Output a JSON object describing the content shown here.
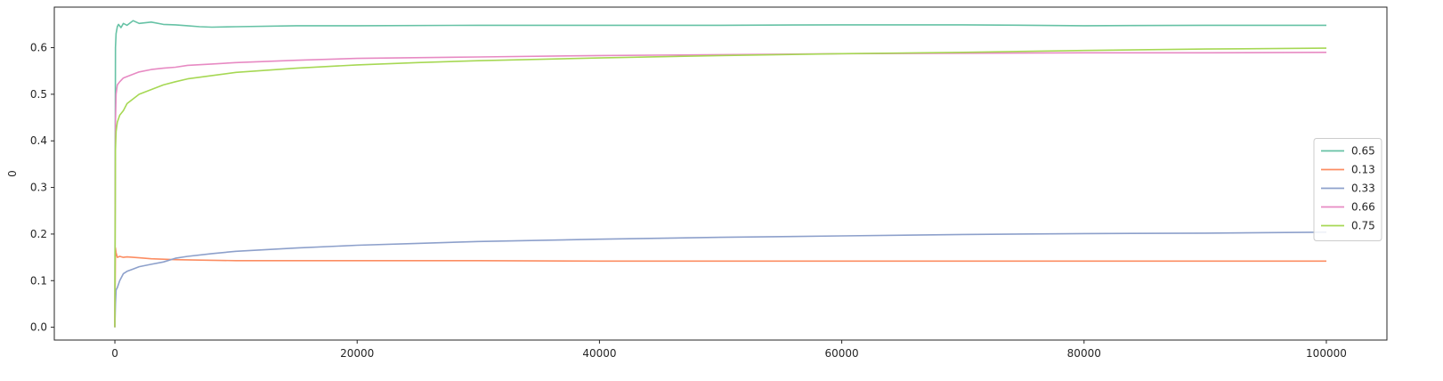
{
  "chart_data": {
    "type": "line",
    "title": "",
    "xlabel": "",
    "ylabel": "0",
    "xlim": [
      -5000,
      105000
    ],
    "ylim": [
      -0.0275,
      0.687
    ],
    "xticks": [
      0,
      20000,
      40000,
      60000,
      80000,
      100000
    ],
    "xtick_labels": [
      "0",
      "20000",
      "40000",
      "60000",
      "80000",
      "100000"
    ],
    "yticks": [
      0.0,
      0.1,
      0.2,
      0.3,
      0.4,
      0.5,
      0.6
    ],
    "ytick_labels": [
      "0.0",
      "0.1",
      "0.2",
      "0.3",
      "0.4",
      "0.5",
      "0.6"
    ],
    "grid": false,
    "legend_position": "center-right",
    "series": [
      {
        "name": "0.65",
        "color": "#66c2a5",
        "x": [
          0,
          50,
          100,
          200,
          300,
          500,
          700,
          1000,
          1500,
          2000,
          3000,
          4000,
          5000,
          6000,
          7000,
          8000,
          10000,
          15000,
          20000,
          30000,
          40000,
          50000,
          60000,
          70000,
          80000,
          90000,
          100000
        ],
        "y": [
          0.0,
          0.6,
          0.63,
          0.645,
          0.65,
          0.643,
          0.652,
          0.648,
          0.658,
          0.652,
          0.655,
          0.65,
          0.649,
          0.647,
          0.645,
          0.644,
          0.645,
          0.647,
          0.647,
          0.648,
          0.648,
          0.648,
          0.649,
          0.649,
          0.647,
          0.648,
          0.648
        ]
      },
      {
        "name": "0.13",
        "color": "#fc8d62",
        "x": [
          0,
          50,
          100,
          200,
          400,
          700,
          1000,
          2000,
          3000,
          4000,
          5000,
          7000,
          10000,
          20000,
          30000,
          40000,
          50000,
          60000,
          70000,
          80000,
          90000,
          100000
        ],
        "y": [
          0.0,
          0.17,
          0.16,
          0.15,
          0.152,
          0.15,
          0.151,
          0.149,
          0.147,
          0.146,
          0.145,
          0.144,
          0.143,
          0.143,
          0.143,
          0.142,
          0.142,
          0.142,
          0.142,
          0.142,
          0.142,
          0.142
        ]
      },
      {
        "name": "0.33",
        "color": "#8da0cb",
        "x": [
          0,
          50,
          100,
          200,
          400,
          700,
          1000,
          1500,
          2000,
          3000,
          4000,
          5000,
          6000,
          8000,
          10000,
          15000,
          20000,
          25000,
          30000,
          40000,
          50000,
          60000,
          70000,
          80000,
          90000,
          100000
        ],
        "y": [
          0.0,
          0.05,
          0.08,
          0.085,
          0.1,
          0.115,
          0.12,
          0.125,
          0.13,
          0.135,
          0.14,
          0.148,
          0.152,
          0.158,
          0.163,
          0.17,
          0.176,
          0.18,
          0.184,
          0.189,
          0.193,
          0.196,
          0.199,
          0.201,
          0.202,
          0.204
        ]
      },
      {
        "name": "0.66",
        "color": "#e78ac3",
        "x": [
          0,
          50,
          100,
          200,
          400,
          700,
          1000,
          1500,
          2000,
          3000,
          4000,
          5000,
          6000,
          8000,
          10000,
          15000,
          20000,
          30000,
          40000,
          50000,
          60000,
          70000,
          80000,
          90000,
          100000
        ],
        "y": [
          0.0,
          0.44,
          0.5,
          0.52,
          0.527,
          0.535,
          0.538,
          0.543,
          0.548,
          0.553,
          0.556,
          0.558,
          0.562,
          0.565,
          0.568,
          0.573,
          0.577,
          0.58,
          0.583,
          0.585,
          0.587,
          0.588,
          0.589,
          0.589,
          0.59
        ]
      },
      {
        "name": "0.75",
        "color": "#a6d854",
        "x": [
          0,
          50,
          100,
          200,
          400,
          700,
          1000,
          1500,
          2000,
          3000,
          4000,
          5000,
          6000,
          8000,
          10000,
          15000,
          20000,
          25000,
          30000,
          40000,
          50000,
          60000,
          70000,
          80000,
          90000,
          100000
        ],
        "y": [
          0.0,
          0.38,
          0.42,
          0.44,
          0.455,
          0.465,
          0.48,
          0.49,
          0.5,
          0.51,
          0.52,
          0.527,
          0.533,
          0.54,
          0.547,
          0.556,
          0.563,
          0.568,
          0.572,
          0.578,
          0.583,
          0.587,
          0.59,
          0.594,
          0.597,
          0.599
        ]
      }
    ]
  }
}
